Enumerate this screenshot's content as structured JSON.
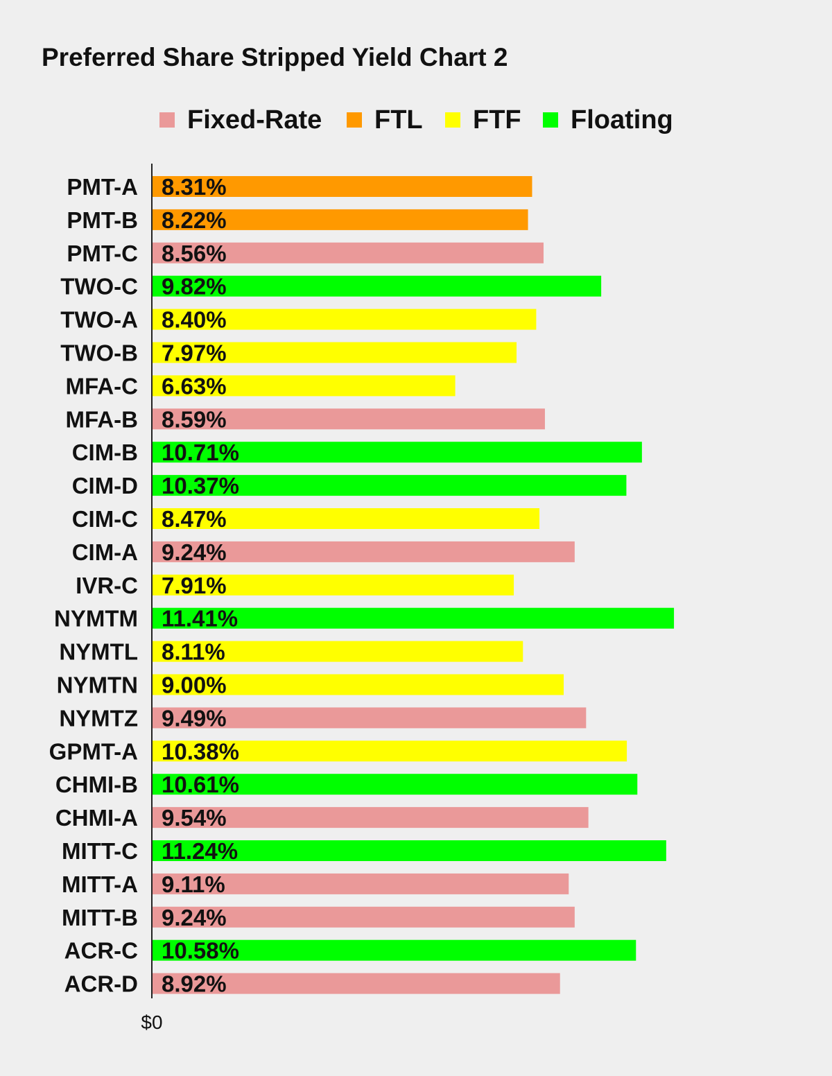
{
  "chart_data": {
    "type": "bar",
    "orientation": "horizontal",
    "title": "Preferred Share Stripped Yield Chart 2",
    "legend": [
      {
        "name": "Fixed-Rate",
        "color": "#ea9999"
      },
      {
        "name": "FTL",
        "color": "#ff9900"
      },
      {
        "name": "FTF",
        "color": "#ffff00"
      },
      {
        "name": "Floating",
        "color": "#00ff00"
      }
    ],
    "legend_position": "top",
    "x_ticks": [
      "$0"
    ],
    "xlim": [
      0,
      14.5
    ],
    "grid": false,
    "bars": [
      {
        "category": "PMT-A",
        "value": 8.31,
        "label": "8.31%",
        "type": "FTL"
      },
      {
        "category": "PMT-B",
        "value": 8.22,
        "label": "8.22%",
        "type": "FTL"
      },
      {
        "category": "PMT-C",
        "value": 8.56,
        "label": "8.56%",
        "type": "Fixed-Rate"
      },
      {
        "category": "TWO-C",
        "value": 9.82,
        "label": "9.82%",
        "type": "Floating"
      },
      {
        "category": "TWO-A",
        "value": 8.4,
        "label": "8.40%",
        "type": "FTF"
      },
      {
        "category": "TWO-B",
        "value": 7.97,
        "label": "7.97%",
        "type": "FTF"
      },
      {
        "category": "MFA-C",
        "value": 6.63,
        "label": "6.63%",
        "type": "FTF"
      },
      {
        "category": "MFA-B",
        "value": 8.59,
        "label": "8.59%",
        "type": "Fixed-Rate"
      },
      {
        "category": "CIM-B",
        "value": 10.71,
        "label": "10.71%",
        "type": "Floating"
      },
      {
        "category": "CIM-D",
        "value": 10.37,
        "label": "10.37%",
        "type": "Floating"
      },
      {
        "category": "CIM-C",
        "value": 8.47,
        "label": "8.47%",
        "type": "FTF"
      },
      {
        "category": "CIM-A",
        "value": 9.24,
        "label": "9.24%",
        "type": "Fixed-Rate"
      },
      {
        "category": "IVR-C",
        "value": 7.91,
        "label": "7.91%",
        "type": "FTF"
      },
      {
        "category": "NYMTM",
        "value": 11.41,
        "label": "11.41%",
        "type": "Floating"
      },
      {
        "category": "NYMTL",
        "value": 8.11,
        "label": "8.11%",
        "type": "FTF"
      },
      {
        "category": "NYMTN",
        "value": 9.0,
        "label": "9.00%",
        "type": "FTF"
      },
      {
        "category": "NYMTZ",
        "value": 9.49,
        "label": "9.49%",
        "type": "Fixed-Rate"
      },
      {
        "category": "GPMT-A",
        "value": 10.38,
        "label": "10.38%",
        "type": "FTF"
      },
      {
        "category": "CHMI-B",
        "value": 10.61,
        "label": "10.61%",
        "type": "Floating"
      },
      {
        "category": "CHMI-A",
        "value": 9.54,
        "label": "9.54%",
        "type": "Fixed-Rate"
      },
      {
        "category": "MITT-C",
        "value": 11.24,
        "label": "11.24%",
        "type": "Floating"
      },
      {
        "category": "MITT-A",
        "value": 9.11,
        "label": "9.11%",
        "type": "Fixed-Rate"
      },
      {
        "category": "MITT-B",
        "value": 9.24,
        "label": "9.24%",
        "type": "Fixed-Rate"
      },
      {
        "category": "ACR-C",
        "value": 10.58,
        "label": "10.58%",
        "type": "Floating"
      },
      {
        "category": "ACR-D",
        "value": 8.92,
        "label": "8.92%",
        "type": "Fixed-Rate"
      }
    ]
  }
}
